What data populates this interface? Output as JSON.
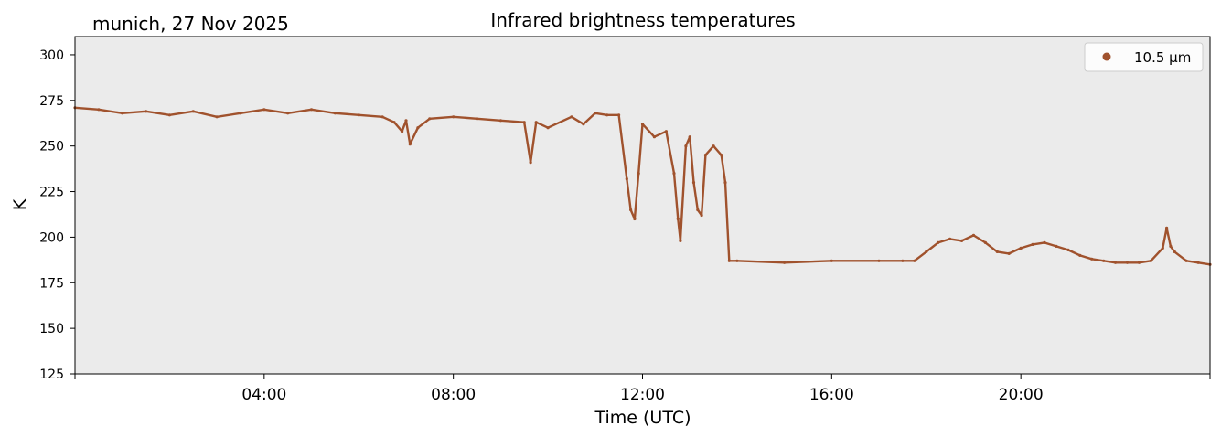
{
  "header": {
    "location_date": "munich, 27 Nov 2025"
  },
  "chart_data": {
    "type": "scatter",
    "title": "Infrared brightness temperatures",
    "xlabel": "Time (UTC)",
    "ylabel": "K",
    "xlim": [
      "00:00",
      "24:00"
    ],
    "ylim": [
      125,
      310
    ],
    "x_ticks": [
      "04:00",
      "08:00",
      "12:00",
      "16:00",
      "20:00"
    ],
    "y_ticks": [
      125,
      150,
      175,
      200,
      225,
      250,
      275,
      300
    ],
    "grid": false,
    "legend_position": "top-right",
    "background_color": "#ebebeb",
    "series": [
      {
        "name": "10.5 µm",
        "color": "#a0522d",
        "x": [
          "00:00",
          "00:30",
          "01:00",
          "01:30",
          "02:00",
          "02:30",
          "03:00",
          "03:30",
          "04:00",
          "04:30",
          "05:00",
          "05:30",
          "06:00",
          "06:30",
          "06:45",
          "06:55",
          "07:00",
          "07:05",
          "07:15",
          "07:30",
          "08:00",
          "08:30",
          "09:00",
          "09:30",
          "09:38",
          "09:45",
          "10:00",
          "10:30",
          "10:45",
          "11:00",
          "11:15",
          "11:30",
          "11:40",
          "11:45",
          "11:50",
          "11:55",
          "12:00",
          "12:15",
          "12:30",
          "12:40",
          "12:45",
          "12:48",
          "12:55",
          "13:00",
          "13:05",
          "13:10",
          "13:15",
          "13:20",
          "13:30",
          "13:40",
          "13:45",
          "13:50",
          "14:00",
          "15:00",
          "16:00",
          "17:00",
          "17:30",
          "17:45",
          "18:00",
          "18:15",
          "18:30",
          "18:45",
          "19:00",
          "19:15",
          "19:30",
          "19:45",
          "20:00",
          "20:15",
          "20:30",
          "20:45",
          "21:00",
          "21:15",
          "21:30",
          "21:45",
          "22:00",
          "22:15",
          "22:30",
          "22:45",
          "23:00",
          "23:05",
          "23:10",
          "23:15",
          "23:30",
          "23:45",
          "24:00"
        ],
        "values": [
          271,
          270,
          268,
          269,
          267,
          269,
          266,
          268,
          270,
          268,
          270,
          268,
          267,
          266,
          263,
          258,
          264,
          251,
          260,
          265,
          266,
          265,
          264,
          263,
          241,
          263,
          260,
          266,
          262,
          268,
          267,
          267,
          232,
          215,
          210,
          235,
          262,
          255,
          258,
          235,
          210,
          198,
          250,
          255,
          230,
          215,
          212,
          245,
          250,
          245,
          230,
          187,
          187,
          186,
          187,
          187,
          187,
          187,
          192,
          197,
          199,
          198,
          201,
          197,
          192,
          191,
          194,
          196,
          197,
          195,
          193,
          190,
          188,
          187,
          186,
          186,
          186,
          187,
          194,
          205,
          195,
          192,
          187,
          186,
          185
        ]
      }
    ]
  }
}
